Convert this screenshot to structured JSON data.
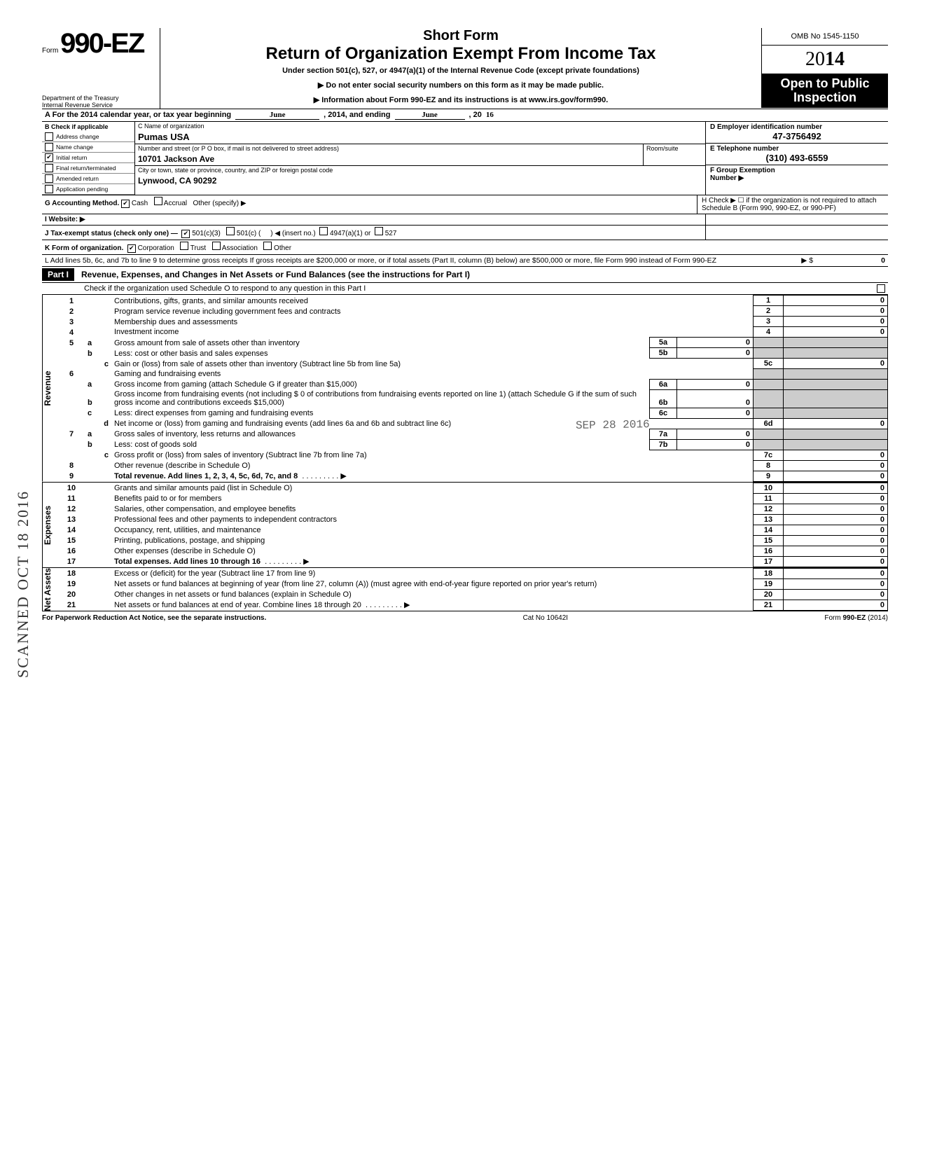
{
  "header": {
    "form_prefix": "Form",
    "form_number": "990-EZ",
    "short_form": "Short Form",
    "main_title": "Return of Organization Exempt From Income Tax",
    "subtitle": "Under section 501(c), 527, or 4947(a)(1) of the Internal Revenue Code (except private foundations)",
    "arrow1": "▶ Do not enter social security numbers on this form as it may be made public.",
    "arrow2": "▶ Information about Form 990-EZ and its instructions is at www.irs.gov/form990.",
    "dept": "Department of the Treasury\nInternal Revenue Service",
    "omb": "OMB No 1545-1150",
    "year_prefix": "20",
    "year_bold": "14",
    "open_public": "Open to Public\nInspection"
  },
  "section_a": {
    "a_text": "A For the 2014 calendar year, or tax year beginning",
    "a_mid": ", 2014, and ending",
    "a_end": ", 20",
    "b_label": "B Check if applicable",
    "checks": [
      "Address change",
      "Name change",
      "Initial return",
      "Final return/terminated",
      "Amended return",
      "Application pending"
    ],
    "checked_index": 2,
    "c_label": "C Name of organization",
    "c_value": "Pumas USA",
    "addr_label": "Number and street (or P O  box, if mail is not delivered to street address)",
    "room_label": "Room/suite",
    "addr_value": "10701 Jackson Ave",
    "city_label": "City or town, state or province, country, and ZIP or foreign postal code",
    "city_value": "Lynwood, CA 90292",
    "d_label": "D Employer identification number",
    "d_value": "47-3756492",
    "e_label": "E Telephone number",
    "e_value": "(310) 493-6559",
    "f_label": "F Group Exemption\nNumber ▶",
    "g_label": "G Accounting Method.",
    "g_cash": "Cash",
    "g_accrual": "Accrual",
    "g_other": "Other (specify) ▶",
    "h_label": "H Check ▶ ☐ if the organization is not required to attach Schedule B (Form 990, 990-EZ, or 990-PF)",
    "i_label": "I  Website: ▶",
    "j_label": "J Tax-exempt status (check only one) —",
    "j_501c3": "501(c)(3)",
    "j_501c": "501(c) (",
    "j_insert": ") ◀ (insert no.)",
    "j_4947": "4947(a)(1) or",
    "j_527": "527",
    "k_label": "K Form of organization.",
    "k_corp": "Corporation",
    "k_trust": "Trust",
    "k_assoc": "Association",
    "k_other": "Other",
    "l_text": "L Add lines 5b, 6c, and 7b to line 9 to determine gross receipts  If gross receipts are $200,000 or more, or if total assets (Part II, column (B) below) are $500,000 or more, file Form 990 instead of Form 990-EZ",
    "l_arrow": "▶  $",
    "l_val": "0",
    "hand_begin": "June",
    "hand_end": "June",
    "hand_year": "16"
  },
  "part1": {
    "label": "Part I",
    "title": "Revenue, Expenses, and Changes in Net Assets or Fund Balances (see the instructions for Part I)",
    "check_line": "Check if the organization used Schedule O to respond to any question in this Part I"
  },
  "sections": {
    "revenue": "Revenue",
    "expenses": "Expenses",
    "netassets": "Net Assets"
  },
  "lines": [
    {
      "n": "1",
      "t": "Contributions, gifts, grants, and similar amounts received",
      "box": "1",
      "v": "0"
    },
    {
      "n": "2",
      "t": "Program service revenue including government fees and contracts",
      "box": "2",
      "v": "0"
    },
    {
      "n": "3",
      "t": "Membership dues and assessments",
      "box": "3",
      "v": "0"
    },
    {
      "n": "4",
      "t": "Investment income",
      "box": "4",
      "v": "0"
    },
    {
      "n": "5a",
      "t": "Gross amount from sale of assets other than inventory",
      "ibox": "5a",
      "iv": "0"
    },
    {
      "n": "b",
      "t": "Less: cost or other basis and sales expenses",
      "ibox": "5b",
      "iv": "0"
    },
    {
      "n": "c",
      "t": "Gain or (loss) from sale of assets other than inventory (Subtract line 5b from line 5a)",
      "box": "5c",
      "v": "0"
    },
    {
      "n": "6",
      "t": "Gaming and fundraising events"
    },
    {
      "n": "a",
      "t": "Gross income from gaming (attach Schedule G if greater than $15,000)",
      "ibox": "6a",
      "iv": "0"
    },
    {
      "n": "b",
      "t": "Gross income from fundraising events (not including  $                 0 of contributions from fundraising events reported on line 1) (attach Schedule G if the sum of such gross income and contributions exceeds $15,000)",
      "ibox": "6b",
      "iv": "0"
    },
    {
      "n": "c",
      "t": "Less: direct expenses from gaming and fundraising events",
      "ibox": "6c",
      "iv": "0"
    },
    {
      "n": "d",
      "t": "Net income or (loss) from gaming and fundraising events (add lines 6a and 6b and subtract line 6c)",
      "box": "6d",
      "v": "0"
    },
    {
      "n": "7a",
      "t": "Gross sales of inventory, less returns and allowances",
      "ibox": "7a",
      "iv": "0"
    },
    {
      "n": "b",
      "t": "Less: cost of goods sold",
      "ibox": "7b",
      "iv": "0"
    },
    {
      "n": "c",
      "t": "Gross profit or (loss) from sales of inventory (Subtract line 7b from line 7a)",
      "box": "7c",
      "v": "0"
    },
    {
      "n": "8",
      "t": "Other revenue (describe in Schedule O)",
      "box": "8",
      "v": "0"
    },
    {
      "n": "9",
      "t": "Total revenue. Add lines 1, 2, 3, 4, 5c, 6d, 7c, and 8",
      "box": "9",
      "v": "0",
      "arrow": true,
      "bold": true
    }
  ],
  "expense_lines": [
    {
      "n": "10",
      "t": "Grants and similar amounts paid (list in Schedule O)",
      "box": "10",
      "v": "0"
    },
    {
      "n": "11",
      "t": "Benefits paid to or for members",
      "box": "11",
      "v": "0"
    },
    {
      "n": "12",
      "t": "Salaries, other compensation, and employee benefits",
      "box": "12",
      "v": "0"
    },
    {
      "n": "13",
      "t": "Professional fees and other payments to independent contractors",
      "box": "13",
      "v": "0"
    },
    {
      "n": "14",
      "t": "Occupancy, rent, utilities, and maintenance",
      "box": "14",
      "v": "0"
    },
    {
      "n": "15",
      "t": "Printing, publications, postage, and shipping",
      "box": "15",
      "v": "0"
    },
    {
      "n": "16",
      "t": "Other expenses (describe in Schedule O)",
      "box": "16",
      "v": "0"
    },
    {
      "n": "17",
      "t": "Total expenses. Add lines 10 through 16",
      "box": "17",
      "v": "0",
      "arrow": true,
      "bold": true
    }
  ],
  "net_lines": [
    {
      "n": "18",
      "t": "Excess or (deficit) for the year (Subtract line 17 from line 9)",
      "box": "18",
      "v": "0"
    },
    {
      "n": "19",
      "t": "Net assets or fund balances at beginning of year (from line 27, column (A)) (must agree with end-of-year figure reported on prior year's return)",
      "box": "19",
      "v": "0"
    },
    {
      "n": "20",
      "t": "Other changes in net assets or fund balances (explain in Schedule O)",
      "box": "20",
      "v": "0"
    },
    {
      "n": "21",
      "t": "Net assets or fund balances at end of year. Combine lines 18 through 20",
      "box": "21",
      "v": "0",
      "arrow": true
    }
  ],
  "footer": {
    "left": "For Paperwork Reduction Act Notice, see the separate instructions.",
    "mid": "Cat  No  10642I",
    "right": "Form 990-EZ (2014)"
  },
  "stamps": {
    "scanned": "SCANNED OCT 18 2016",
    "received": "SEP 28 2016"
  }
}
